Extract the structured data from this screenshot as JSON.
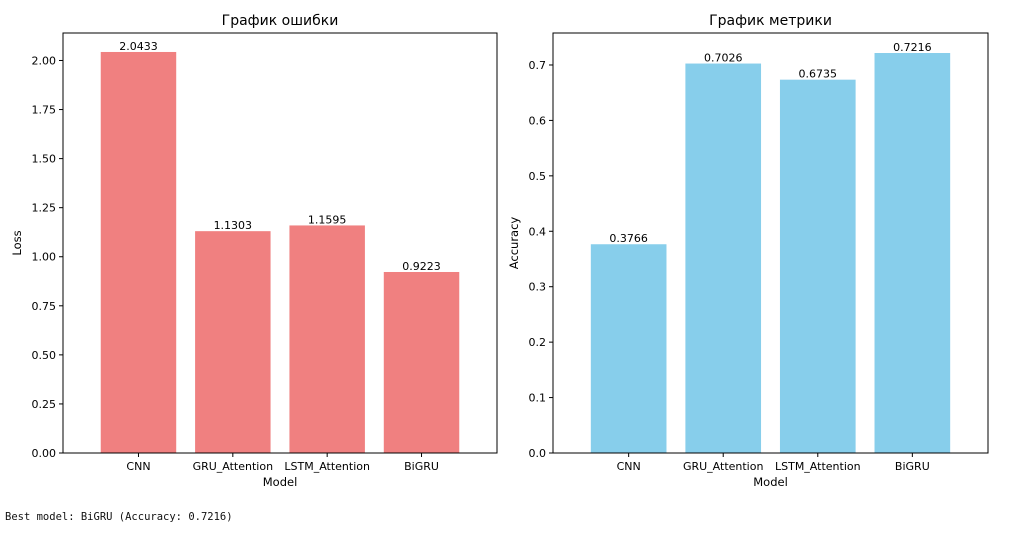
{
  "chart_data": [
    {
      "type": "bar",
      "title": "График ошибки",
      "xlabel": "Model",
      "ylabel": "Loss",
      "categories": [
        "CNN",
        "GRU_Attention",
        "LSTM_Attention",
        "BiGRU"
      ],
      "values": [
        2.0433,
        1.1303,
        1.1595,
        0.9223
      ],
      "data_labels": [
        "2.0433",
        "1.1303",
        "1.1595",
        "0.9223"
      ],
      "ylim": [
        0,
        2.14
      ],
      "yticks": [
        0,
        0.25,
        0.5,
        0.75,
        1.0,
        1.25,
        1.5,
        1.75,
        2.0
      ],
      "ytick_labels": [
        "0.00",
        "0.25",
        "0.50",
        "0.75",
        "1.00",
        "1.25",
        "1.50",
        "1.75",
        "2.00"
      ],
      "color": "#f08080",
      "grid": false
    },
    {
      "type": "bar",
      "title": "График метрики",
      "xlabel": "Model",
      "ylabel": "Accuracy",
      "categories": [
        "CNN",
        "GRU_Attention",
        "LSTM_Attention",
        "BiGRU"
      ],
      "values": [
        0.3766,
        0.7026,
        0.6735,
        0.7216
      ],
      "data_labels": [
        "0.3766",
        "0.7026",
        "0.6735",
        "0.7216"
      ],
      "ylim": [
        0,
        0.7577
      ],
      "yticks": [
        0,
        0.1,
        0.2,
        0.3,
        0.4,
        0.5,
        0.6,
        0.7
      ],
      "ytick_labels": [
        "0.0",
        "0.1",
        "0.2",
        "0.3",
        "0.4",
        "0.5",
        "0.6",
        "0.7"
      ],
      "color": "#87ceeb",
      "grid": false
    }
  ],
  "output": {
    "text": "Best model: BiGRU (Accuracy: 0.7216)"
  }
}
